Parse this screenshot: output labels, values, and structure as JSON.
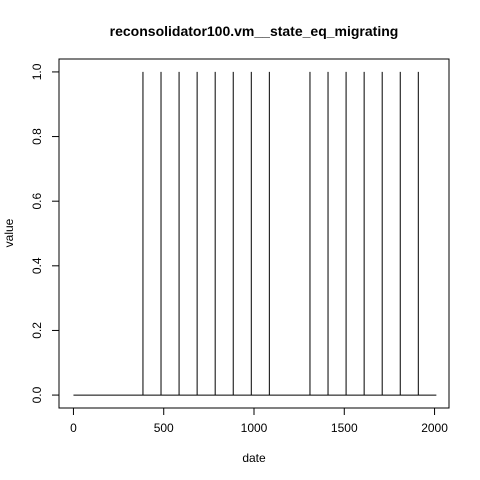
{
  "chart_data": {
    "type": "line",
    "title": "reconsolidator100.vm__state_eq_migrating",
    "xlabel": "date",
    "ylabel": "value",
    "xlim": [
      -80,
      2080
    ],
    "ylim": [
      -0.04,
      1.04
    ],
    "x_ticks": [
      0,
      500,
      1000,
      1500,
      2000
    ],
    "x_tick_labels": [
      "0",
      "500",
      "1000",
      "1500",
      "2000"
    ],
    "y_ticks": [
      0.0,
      0.2,
      0.4,
      0.6,
      0.8,
      1.0
    ],
    "y_tick_labels": [
      "0.0",
      "0.2",
      "0.4",
      "0.6",
      "0.8",
      "1.0"
    ],
    "grid": false,
    "legend": "none",
    "baseline": {
      "x_start": 0,
      "x_end": 2010,
      "value": 0
    },
    "spikes": [
      {
        "x": 385,
        "value": 1
      },
      {
        "x": 485,
        "value": 1
      },
      {
        "x": 585,
        "value": 1
      },
      {
        "x": 685,
        "value": 1
      },
      {
        "x": 785,
        "value": 1
      },
      {
        "x": 885,
        "value": 1
      },
      {
        "x": 985,
        "value": 1
      },
      {
        "x": 1085,
        "value": 1
      },
      {
        "x": 1310,
        "value": 1
      },
      {
        "x": 1410,
        "value": 1
      },
      {
        "x": 1510,
        "value": 1
      },
      {
        "x": 1610,
        "value": 1
      },
      {
        "x": 1710,
        "value": 1
      },
      {
        "x": 1810,
        "value": 1
      },
      {
        "x": 1910,
        "value": 1
      }
    ],
    "series_color": "#000000"
  }
}
